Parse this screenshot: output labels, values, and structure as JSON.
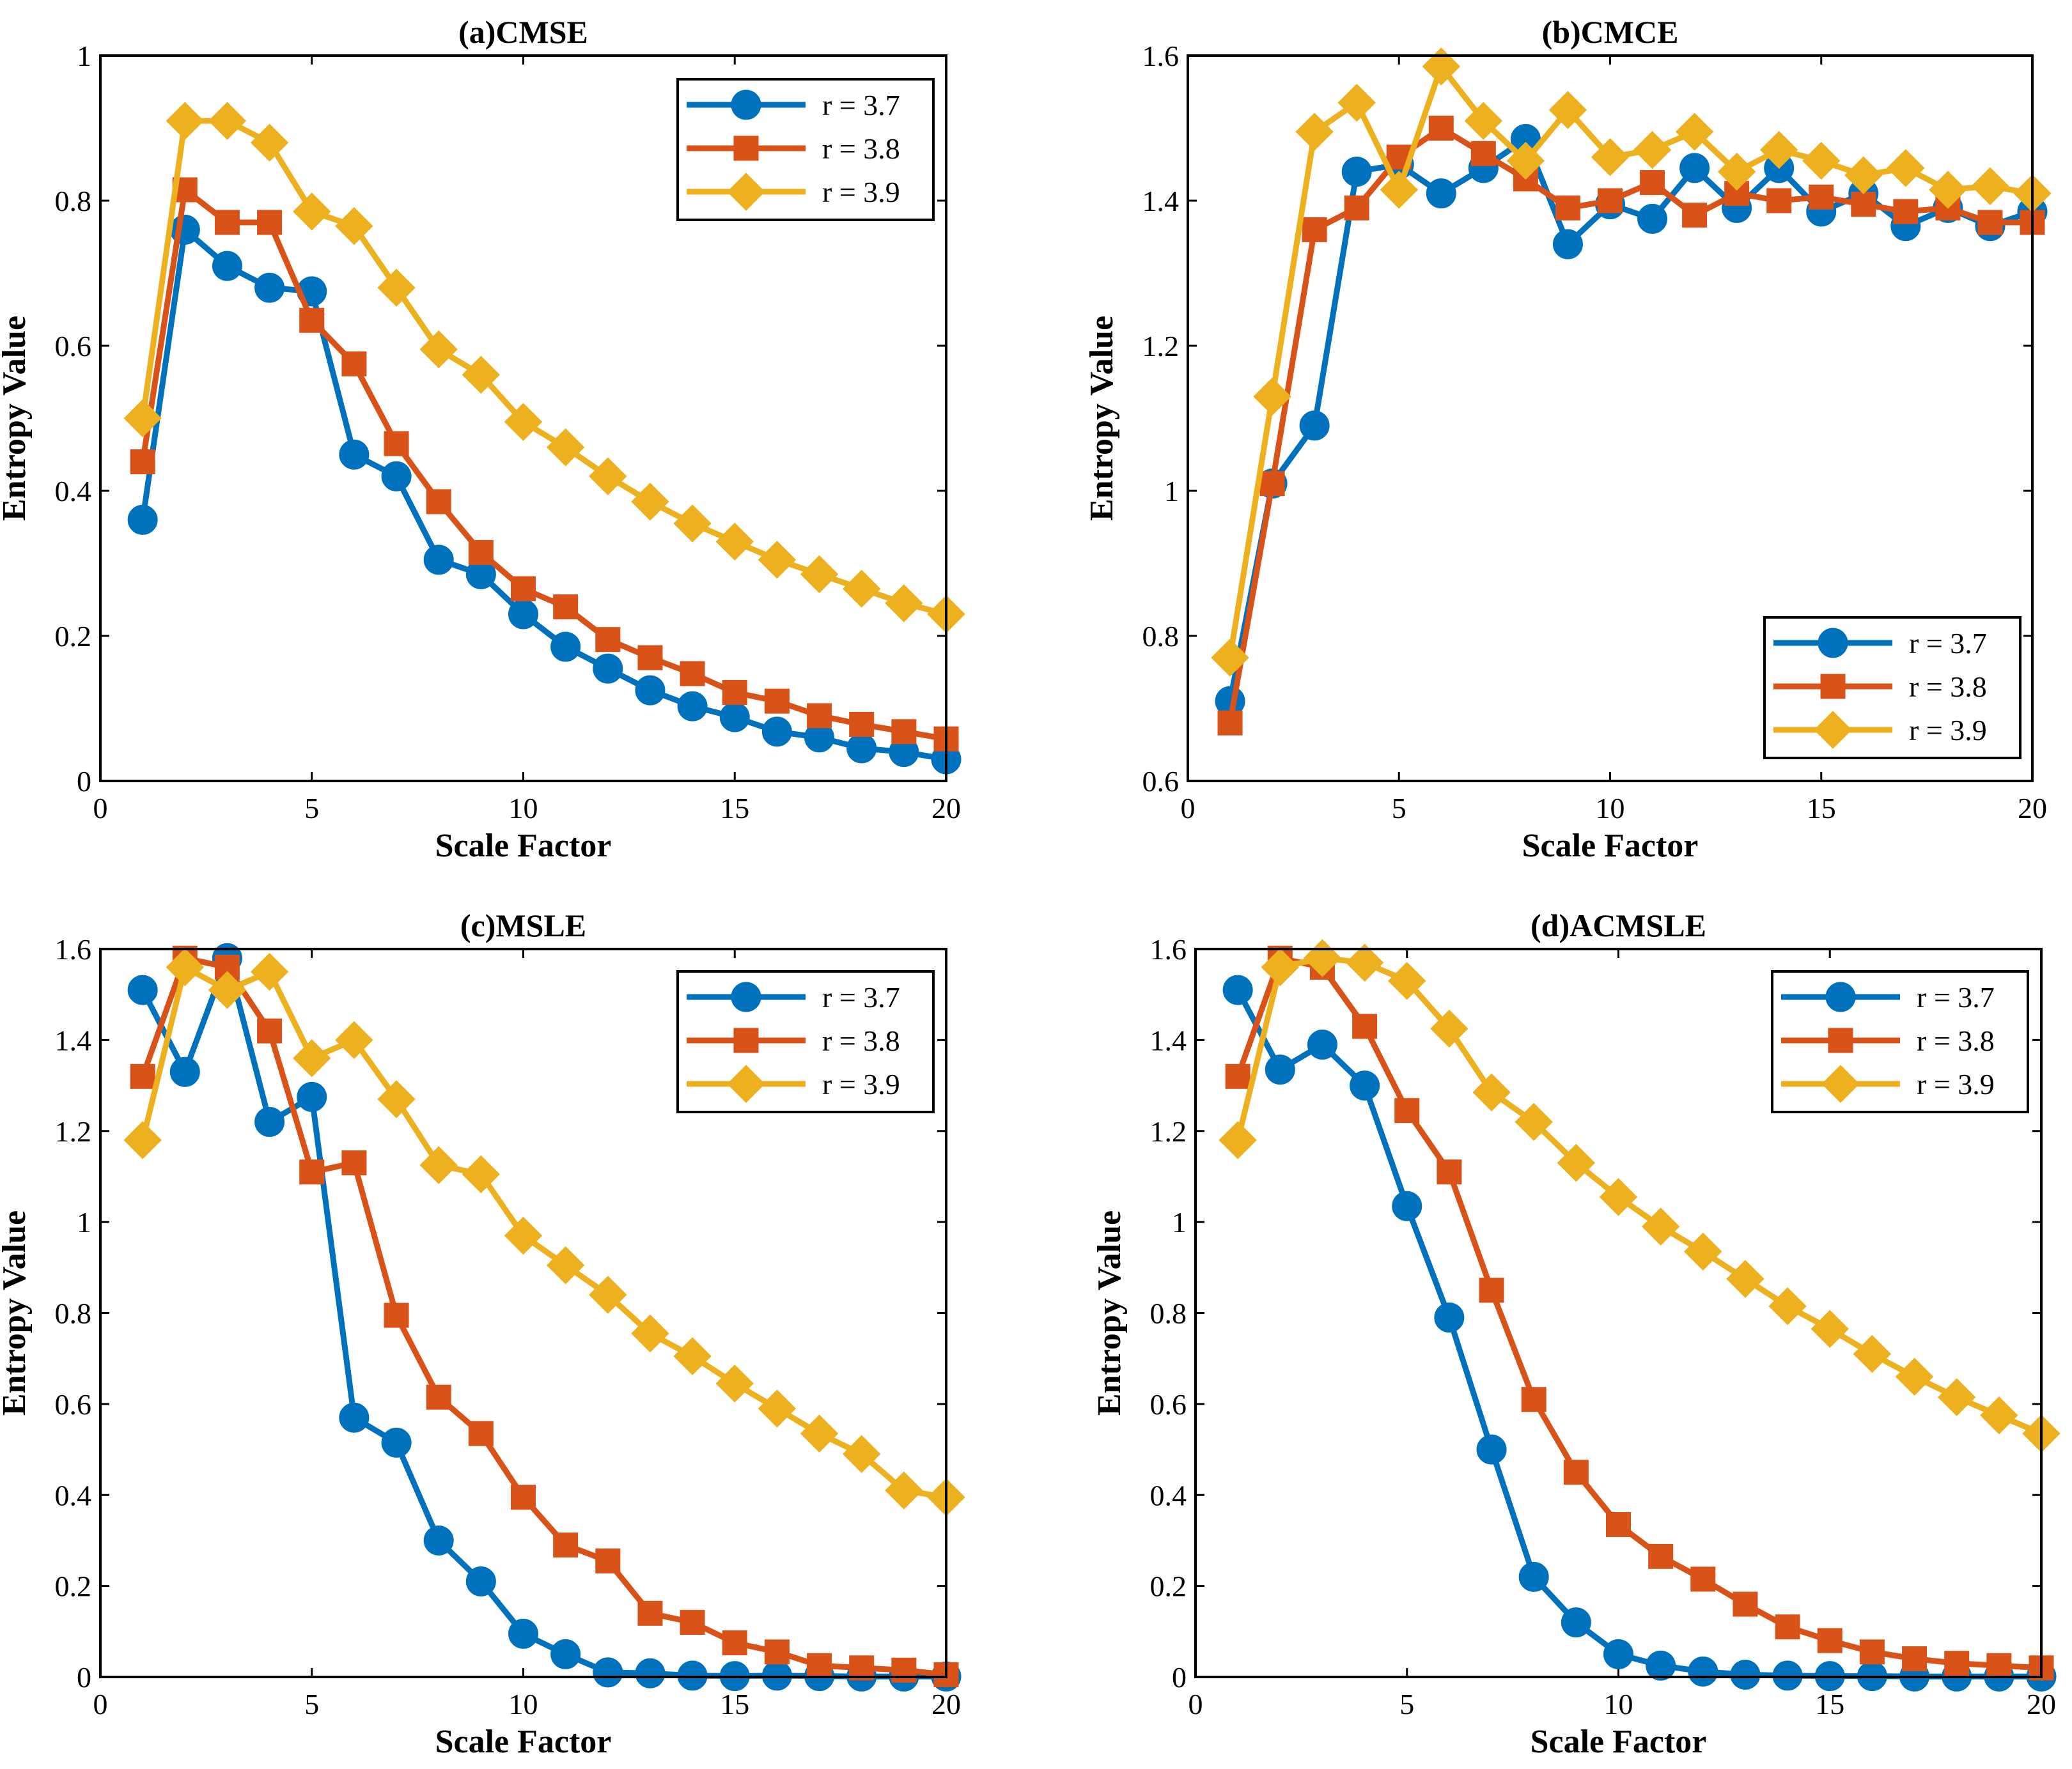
{
  "colors": {
    "r37": "#0072BD",
    "r38": "#D95319",
    "r39": "#EDB120"
  },
  "chart_data": [
    {
      "type": "line",
      "title": "(a)CMSE",
      "xlabel": "Scale Factor",
      "ylabel": "Entropy Value",
      "xlim": [
        0,
        20
      ],
      "ylim": [
        0,
        1
      ],
      "xticks": [
        0,
        5,
        10,
        15,
        20
      ],
      "xtick_labels": [
        "0",
        "5",
        "10",
        "15",
        "20"
      ],
      "yticks": [
        0,
        0.2,
        0.4,
        0.6,
        0.8,
        1
      ],
      "ytick_labels": [
        "0",
        "0.2",
        "0.4",
        "0.6",
        "0.8",
        "1"
      ],
      "legend_position": "top-right",
      "x": [
        1,
        2,
        3,
        4,
        5,
        6,
        7,
        8,
        9,
        10,
        11,
        12,
        13,
        14,
        15,
        16,
        17,
        18,
        19,
        20
      ],
      "series": [
        {
          "name": "r = 3.7",
          "marker": "circle",
          "color": "#0072BD",
          "values": [
            0.36,
            0.76,
            0.71,
            0.68,
            0.675,
            0.45,
            0.42,
            0.305,
            0.285,
            0.23,
            0.185,
            0.155,
            0.125,
            0.103,
            0.088,
            0.068,
            0.06,
            0.045,
            0.04,
            0.03
          ]
        },
        {
          "name": "r = 3.8",
          "marker": "square",
          "color": "#D95319",
          "values": [
            0.44,
            0.815,
            0.77,
            0.77,
            0.635,
            0.575,
            0.465,
            0.385,
            0.315,
            0.265,
            0.24,
            0.195,
            0.17,
            0.148,
            0.122,
            0.11,
            0.09,
            0.078,
            0.068,
            0.058
          ]
        },
        {
          "name": "r = 3.9",
          "marker": "diamond",
          "color": "#EDB120",
          "values": [
            0.5,
            0.91,
            0.91,
            0.88,
            0.785,
            0.765,
            0.68,
            0.595,
            0.56,
            0.495,
            0.46,
            0.42,
            0.385,
            0.355,
            0.33,
            0.305,
            0.285,
            0.265,
            0.245,
            0.23
          ]
        }
      ]
    },
    {
      "type": "line",
      "title": "(b)CMCE",
      "xlabel": "Scale Factor",
      "ylabel": "Entropy Value",
      "xlim": [
        0,
        20
      ],
      "ylim": [
        0.6,
        1.6
      ],
      "xticks": [
        0,
        5,
        10,
        15,
        20
      ],
      "xtick_labels": [
        "0",
        "5",
        "10",
        "15",
        "20"
      ],
      "yticks": [
        0.6,
        0.8,
        1,
        1.2,
        1.4,
        1.6
      ],
      "ytick_labels": [
        "0.6",
        "0.8",
        "1",
        "1.2",
        "1.4",
        "1.6"
      ],
      "legend_position": "bottom-right",
      "x": [
        1,
        2,
        3,
        4,
        5,
        6,
        7,
        8,
        9,
        10,
        11,
        12,
        13,
        14,
        15,
        16,
        17,
        18,
        19,
        20
      ],
      "series": [
        {
          "name": "r = 3.7",
          "marker": "circle",
          "color": "#0072BD",
          "values": [
            0.71,
            1.01,
            1.09,
            1.44,
            1.45,
            1.41,
            1.445,
            1.485,
            1.34,
            1.395,
            1.375,
            1.445,
            1.39,
            1.445,
            1.385,
            1.41,
            1.365,
            1.39,
            1.365,
            1.385
          ]
        },
        {
          "name": "r = 3.8",
          "marker": "square",
          "color": "#D95319",
          "values": [
            0.68,
            1.01,
            1.36,
            1.39,
            1.46,
            1.5,
            1.465,
            1.43,
            1.39,
            1.4,
            1.425,
            1.38,
            1.41,
            1.4,
            1.405,
            1.395,
            1.385,
            1.39,
            1.37,
            1.37
          ]
        },
        {
          "name": "r = 3.9",
          "marker": "diamond",
          "color": "#EDB120",
          "values": [
            0.77,
            1.13,
            1.495,
            1.535,
            1.415,
            1.585,
            1.51,
            1.455,
            1.525,
            1.46,
            1.47,
            1.495,
            1.44,
            1.47,
            1.455,
            1.435,
            1.445,
            1.415,
            1.42,
            1.41
          ]
        }
      ]
    },
    {
      "type": "line",
      "title": "(c)MSLE",
      "xlabel": "Scale Factor",
      "ylabel": "Entropy Value",
      "xlim": [
        0,
        20
      ],
      "ylim": [
        0,
        1.6
      ],
      "xticks": [
        0,
        5,
        10,
        15,
        20
      ],
      "xtick_labels": [
        "0",
        "5",
        "10",
        "15",
        "20"
      ],
      "yticks": [
        0,
        0.2,
        0.4,
        0.6,
        0.8,
        1,
        1.2,
        1.4,
        1.6
      ],
      "ytick_labels": [
        "0",
        "0.2",
        "0.4",
        "0.6",
        "0.8",
        "1",
        "1.2",
        "1.4",
        "1.6"
      ],
      "legend_position": "top-right",
      "x": [
        1,
        2,
        3,
        4,
        5,
        6,
        7,
        8,
        9,
        10,
        11,
        12,
        13,
        14,
        15,
        16,
        17,
        18,
        19,
        20
      ],
      "series": [
        {
          "name": "r = 3.7",
          "marker": "circle",
          "color": "#0072BD",
          "values": [
            1.51,
            1.33,
            1.58,
            1.22,
            1.275,
            0.57,
            0.515,
            0.3,
            0.21,
            0.095,
            0.05,
            0.01,
            0.008,
            0.003,
            0.002,
            0.003,
            0.002,
            0.001,
            0.001,
            0.001
          ]
        },
        {
          "name": "r = 3.8",
          "marker": "square",
          "color": "#D95319",
          "values": [
            1.32,
            1.58,
            1.56,
            1.42,
            1.11,
            1.13,
            0.795,
            0.615,
            0.535,
            0.395,
            0.29,
            0.255,
            0.14,
            0.12,
            0.075,
            0.055,
            0.025,
            0.02,
            0.015,
            0.005
          ]
        },
        {
          "name": "r = 3.9",
          "marker": "diamond",
          "color": "#EDB120",
          "values": [
            1.18,
            1.56,
            1.51,
            1.55,
            1.36,
            1.4,
            1.27,
            1.125,
            1.105,
            0.97,
            0.905,
            0.84,
            0.755,
            0.705,
            0.645,
            0.59,
            0.535,
            0.49,
            0.41,
            0.395
          ]
        }
      ]
    },
    {
      "type": "line",
      "title": "(d)ACMSLE",
      "xlabel": "Scale Factor",
      "ylabel": "Entropy Value",
      "xlim": [
        0,
        20
      ],
      "ylim": [
        0,
        1.6
      ],
      "xticks": [
        0,
        5,
        10,
        15,
        20
      ],
      "xtick_labels": [
        "0",
        "5",
        "10",
        "15",
        "20"
      ],
      "yticks": [
        0,
        0.2,
        0.4,
        0.6,
        0.8,
        1,
        1.2,
        1.4,
        1.6
      ],
      "ytick_labels": [
        "0",
        "0.2",
        "0.4",
        "0.6",
        "0.8",
        "1",
        "1.2",
        "1.4",
        "1.6"
      ],
      "legend_position": "top-right",
      "x": [
        1,
        2,
        3,
        4,
        5,
        6,
        7,
        8,
        9,
        10,
        11,
        12,
        13,
        14,
        15,
        16,
        17,
        18,
        19,
        20
      ],
      "series": [
        {
          "name": "r = 3.7",
          "marker": "circle",
          "color": "#0072BD",
          "values": [
            1.51,
            1.335,
            1.39,
            1.3,
            1.035,
            0.79,
            0.5,
            0.22,
            0.12,
            0.05,
            0.025,
            0.012,
            0.005,
            0.003,
            0.002,
            0.002,
            0.001,
            0.001,
            0.001,
            0.001
          ]
        },
        {
          "name": "r = 3.8",
          "marker": "square",
          "color": "#D95319",
          "values": [
            1.32,
            1.58,
            1.56,
            1.43,
            1.245,
            1.11,
            0.85,
            0.61,
            0.45,
            0.335,
            0.265,
            0.215,
            0.16,
            0.11,
            0.08,
            0.055,
            0.04,
            0.03,
            0.025,
            0.02
          ]
        },
        {
          "name": "r = 3.9",
          "marker": "diamond",
          "color": "#EDB120",
          "values": [
            1.18,
            1.56,
            1.58,
            1.57,
            1.53,
            1.425,
            1.285,
            1.22,
            1.13,
            1.055,
            0.99,
            0.935,
            0.875,
            0.815,
            0.765,
            0.71,
            0.66,
            0.615,
            0.575,
            0.535
          ]
        }
      ]
    }
  ]
}
